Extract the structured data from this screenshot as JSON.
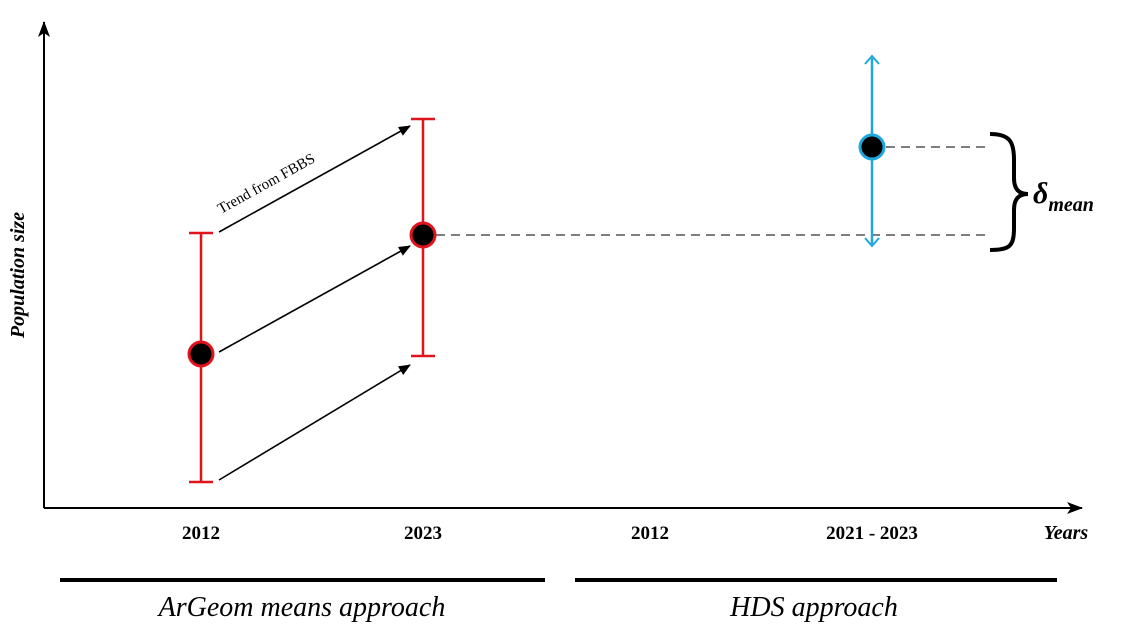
{
  "axes": {
    "y_title": "Population size",
    "x_title": "Years"
  },
  "ticks": [
    "2012",
    "2023",
    "2012",
    "2021 - 2023"
  ],
  "sections": {
    "left_label": "ArGeom means approach",
    "right_label": "HDS approach"
  },
  "trend_label": "Trend from FBBS",
  "delta": {
    "symbol": "δ",
    "subscript": "mean"
  },
  "colors": {
    "argeom_bar": "#e0141c",
    "hds_bar": "#1fa7dc",
    "point_fill": "#000000",
    "axis": "#000000",
    "dashed": "#555555"
  }
}
